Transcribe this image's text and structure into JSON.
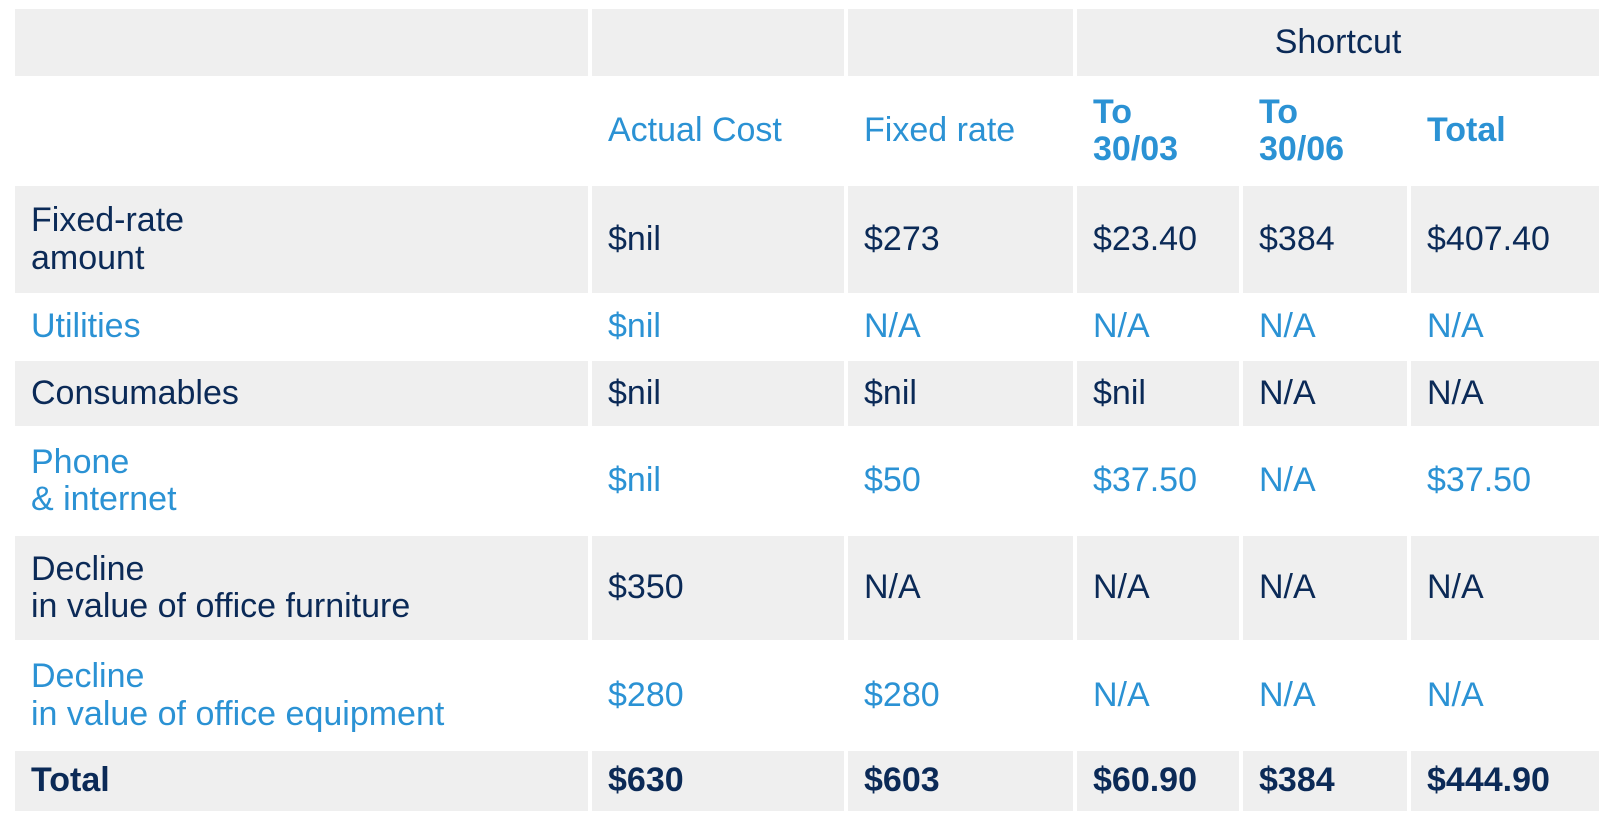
{
  "colors": {
    "dark_text": "#0b2a57",
    "accent_blue": "#2b92d4",
    "row_shade": "#efefef"
  },
  "header": {
    "group_label": "Shortcut",
    "columns": [
      "",
      "Actual Cost",
      "Fixed rate",
      "To\n30/03",
      "To\n30/06",
      "Total"
    ]
  },
  "rows": [
    {
      "label": "Fixed-rate\namount",
      "values": [
        "$nil",
        "$273",
        "$23.40",
        "$384",
        "$407.40"
      ]
    },
    {
      "label": "Utilities",
      "values": [
        "$nil",
        "N/A",
        "N/A",
        "N/A",
        "N/A"
      ]
    },
    {
      "label": "Consumables",
      "values": [
        "$nil",
        "$nil",
        "$nil",
        "N/A",
        "N/A"
      ]
    },
    {
      "label": "Phone\n& internet",
      "values": [
        "$nil",
        "$50",
        "$37.50",
        "N/A",
        "$37.50"
      ]
    },
    {
      "label": "Decline\nin value of office furniture",
      "values": [
        "$350",
        "N/A",
        "N/A",
        "N/A",
        "N/A"
      ]
    },
    {
      "label": "Decline\nin value of office equipment",
      "values": [
        "$280",
        "$280",
        "N/A",
        "N/A",
        "N/A"
      ]
    }
  ],
  "total": {
    "label": "Total",
    "values": [
      "$630",
      "$603",
      "$60.90",
      "$384",
      "$444.90"
    ]
  }
}
